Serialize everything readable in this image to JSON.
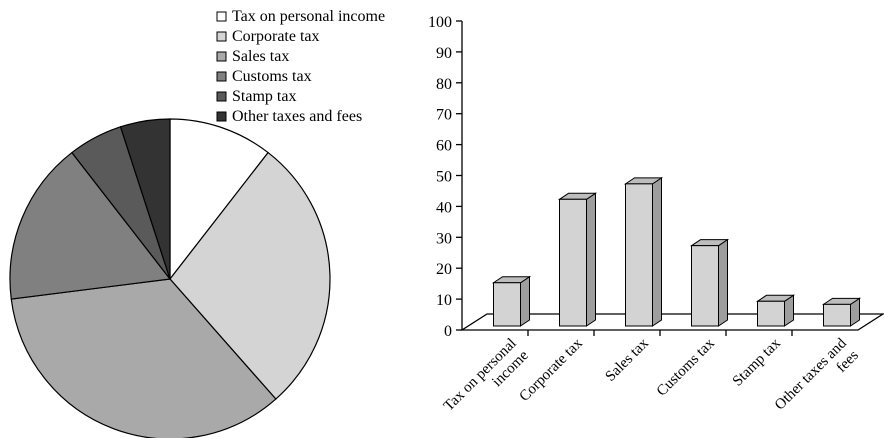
{
  "chart_data": [
    {
      "type": "pie",
      "categories": [
        "Tax on personal income",
        "Corporate tax",
        "Sales tax",
        "Customs tax",
        "Stamp tax",
        "Other taxes and fees"
      ],
      "values": [
        10.5,
        28,
        34.5,
        16.5,
        5.5,
        5
      ],
      "legend": "top",
      "colors": [
        "#ffffff",
        "#d4d4d4",
        "#a9a9a9",
        "#808080",
        "#5a5a5a",
        "#333333"
      ]
    },
    {
      "type": "bar",
      "categories": [
        "Tax on personal income",
        "Corporate tax",
        "Sales tax",
        "Customs tax",
        "Stamp tax",
        "Other taxes and fees"
      ],
      "values": [
        14,
        41,
        46,
        26,
        8,
        7
      ],
      "ylim": [
        0,
        100
      ],
      "yticks": [
        0,
        10,
        20,
        30,
        40,
        50,
        60,
        70,
        80,
        90,
        100
      ],
      "grid": false,
      "bar_color": "#d3d3d3",
      "style": "3d"
    }
  ]
}
